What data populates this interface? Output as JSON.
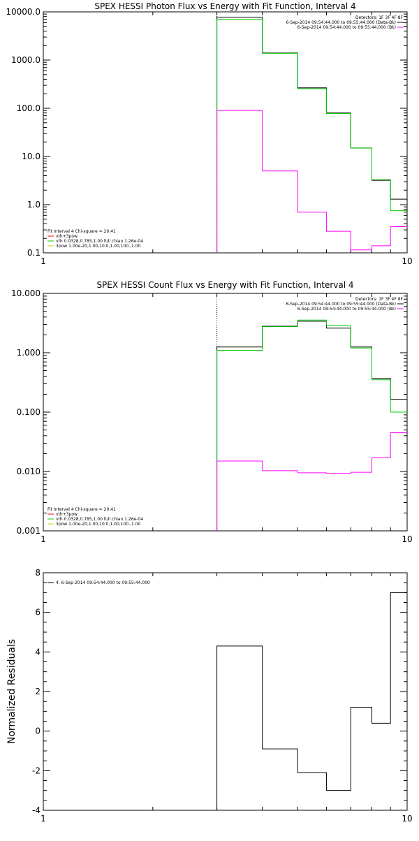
{
  "chart_data": [
    {
      "type": "line",
      "title": "SPEX HESSI Photon Flux vs Energy with Fit Function, Interval 4",
      "xscale": "log",
      "yscale": "log",
      "xlim": [
        1,
        10
      ],
      "ylim": [
        0.1,
        10000
      ],
      "x_ticks": [
        1,
        10
      ],
      "x_tick_labels": [
        "1",
        "10"
      ],
      "y_ticks": [
        0.1,
        1,
        10,
        100,
        1000,
        10000
      ],
      "y_tick_labels": [
        "0.1",
        "1.0",
        "10.0",
        "100.0",
        "1000.0",
        "10000.0"
      ],
      "vline": 3,
      "bin_edges": [
        3,
        4,
        5,
        6,
        7,
        8,
        9,
        10
      ],
      "legend_right": [
        {
          "text": "Detectors: 1F 3F 4F 8F",
          "color": "#000000",
          "marker": false
        },
        {
          "text": "6-Sep-2014 09:54:44.000 to 09:55:44.000 (Data-Bk)",
          "color": "#000000",
          "marker": true
        },
        {
          "text": "6-Sep-2014 09:54:44.000 to 09:55:44.000 (Bk)",
          "color": "#ff00ff",
          "marker": true
        }
      ],
      "legend_left": [
        {
          "text": "Fit Interval 4   Chi-square = 20.41",
          "color": "#000000",
          "marker": false
        },
        {
          "text": "vth+3pow",
          "color": "#ff0000",
          "marker": true
        },
        {
          "text": "vth 0.0328,0.785,1.00  full chian 1.26e-04",
          "color": "#00cc00",
          "marker": true
        },
        {
          "text": "3pow 1.00e-20,1.00,10.0,1.00,100.,1.00",
          "color": "#cccc00",
          "marker": true
        }
      ],
      "series": [
        {
          "name": "6-Sep-2014 09:54:44.000 to 09:55:44.000 (Data-Bk)",
          "color": "#000000",
          "values": [
            7800,
            1400,
            265,
            80,
            15,
            3.2,
            1.3
          ]
        },
        {
          "name": "vth 0.0328,0.785,1.00  full chian 1.26e-04",
          "color": "#00cc00",
          "values": [
            7000,
            1380,
            255,
            78,
            15,
            3.3,
            0.75
          ]
        },
        {
          "name": "6-Sep-2014 09:54:44.000 to 09:55:44.000 (Bk)",
          "color": "#ff00ff",
          "values": [
            90,
            5.0,
            0.7,
            0.28,
            0.115,
            0.14,
            0.35
          ]
        }
      ]
    },
    {
      "type": "line",
      "title": "SPEX HESSI Count Flux vs Energy with Fit Function, Interval 4",
      "xscale": "log",
      "yscale": "log",
      "xlim": [
        1,
        10
      ],
      "ylim": [
        0.001,
        10
      ],
      "x_ticks": [
        1,
        10
      ],
      "x_tick_labels": [
        "1",
        "10"
      ],
      "y_ticks": [
        0.001,
        0.01,
        0.1,
        1,
        10
      ],
      "y_tick_labels": [
        "0.001",
        "0.010",
        "0.100",
        "1.000",
        "10.000"
      ],
      "vline": 3,
      "bin_edges": [
        3,
        4,
        5,
        6,
        7,
        8,
        9,
        10
      ],
      "legend_right": [
        {
          "text": "Detectors: 1F 3F 4F 8F",
          "color": "#000000",
          "marker": false
        },
        {
          "text": "6-Sep-2014 09:54:44.000 to 09:55:44.000 (Data-Bk)",
          "color": "#000000",
          "marker": true
        },
        {
          "text": "6-Sep-2014 09:54:44.000 to 09:55:44.000 (Bk)",
          "color": "#ff00ff",
          "marker": true
        }
      ],
      "legend_left": [
        {
          "text": "Fit Interval 4   Chi-square = 20.41",
          "color": "#000000",
          "marker": false
        },
        {
          "text": "vth+3pow",
          "color": "#ff0000",
          "marker": true
        },
        {
          "text": "vth 0.0328,0.785,1.00  full chian 1.26e-04",
          "color": "#00cc00",
          "marker": true
        },
        {
          "text": "3pow 1.00e-20,1.00,10.0,1.00,100.,1.00",
          "color": "#cccc00",
          "marker": true
        }
      ],
      "series": [
        {
          "name": "6-Sep-2014 09:54:44.000 to 09:55:44.000 (Data-Bk)",
          "color": "#000000",
          "values": [
            1.25,
            2.8,
            3.4,
            2.6,
            1.25,
            0.37,
            0.165
          ]
        },
        {
          "name": "vth 0.0328,0.785,1.00  full chian 1.26e-04",
          "color": "#00cc00",
          "values": [
            1.1,
            2.75,
            3.55,
            2.85,
            1.2,
            0.35,
            0.1
          ]
        },
        {
          "name": "6-Sep-2014 09:54:44.000 to 09:55:44.000 (Bk)",
          "color": "#ff00ff",
          "values": [
            0.015,
            0.0103,
            0.0095,
            0.0093,
            0.0097,
            0.017,
            0.045
          ]
        }
      ]
    },
    {
      "type": "line",
      "title": "",
      "ylabel": "Normalized Residuals",
      "xscale": "log",
      "yscale": "linear",
      "xlim": [
        1,
        10
      ],
      "ylim": [
        -4,
        8
      ],
      "x_ticks": [
        1,
        10
      ],
      "x_tick_labels": [
        "1",
        "10"
      ],
      "y_ticks": [
        -4,
        -2,
        0,
        2,
        4,
        6,
        8
      ],
      "y_tick_labels": [
        "-4",
        "-2",
        "0",
        "2",
        "4",
        "6",
        "8"
      ],
      "bin_edges": [
        3,
        4,
        5,
        6,
        7,
        8,
        9,
        10
      ],
      "legend_left": [
        {
          "text": "4.  6-Sep-2014 09:54:44.000 to 09:55:44.000",
          "color": "#000000",
          "marker": true
        }
      ],
      "series": [
        {
          "name": "4.  6-Sep-2014 09:54:44.000 to 09:55:44.000",
          "color": "#000000",
          "values": [
            4.3,
            -0.9,
            -2.1,
            -3.0,
            1.2,
            0.4,
            7.0
          ]
        }
      ]
    }
  ]
}
